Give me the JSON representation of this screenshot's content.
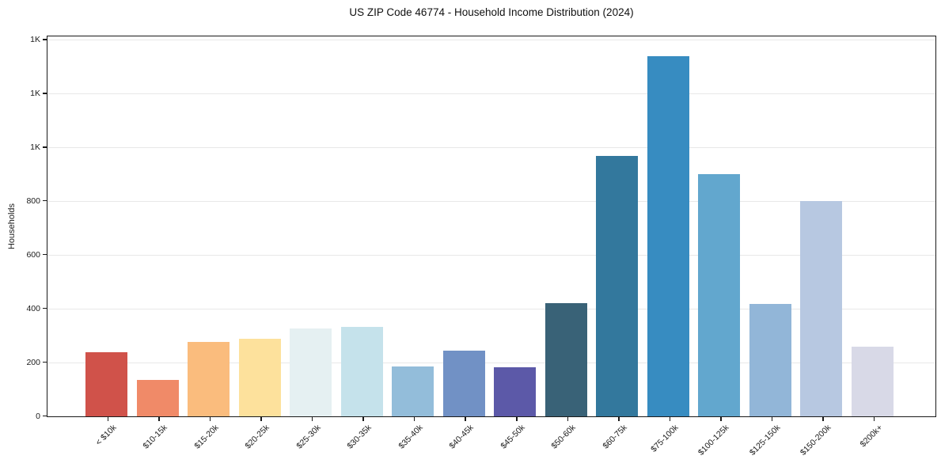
{
  "chart_data": {
    "type": "bar",
    "title": "US ZIP Code 46774 - Household Income Distribution (2024)",
    "ylabel": "Households",
    "categories": [
      "< $10k",
      "$10-15k",
      "$15-20k",
      "$20-25k",
      "$25-30k",
      "$30-35k",
      "$35-40k",
      "$40-45k",
      "$45-50k",
      "$50-60k",
      "$60-75k",
      "$75-100k",
      "$100-125k",
      "$125-150k",
      "$150-200k",
      "$200k+"
    ],
    "values": [
      238,
      136,
      277,
      289,
      328,
      334,
      186,
      245,
      183,
      422,
      968,
      1340,
      900,
      418,
      800,
      258
    ],
    "bar_colors": [
      "#d0524a",
      "#f08a68",
      "#fabc7d",
      "#fde19c",
      "#e5f0f2",
      "#c5e2eb",
      "#93bdda",
      "#7191c5",
      "#5c59a8",
      "#396277",
      "#33789d",
      "#378cc1",
      "#62a7ce",
      "#92b6d8",
      "#b7c8e1",
      "#d8d9e7"
    ],
    "ylim": [
      0,
      1410
    ],
    "yticks": [
      0,
      200,
      400,
      600,
      800,
      1000,
      1200,
      1400
    ],
    "ytick_labels": [
      "0",
      "200",
      "400",
      "600",
      "800",
      "1K",
      "1K",
      "1K"
    ],
    "legend": "none",
    "grid": "horizontal",
    "grid_color": "#e8e8e8",
    "spine_color": "#1a1a1a",
    "tick_color": "#1a1a1a",
    "text_color": "#1a1a1a",
    "background_color": "#ffffff"
  }
}
